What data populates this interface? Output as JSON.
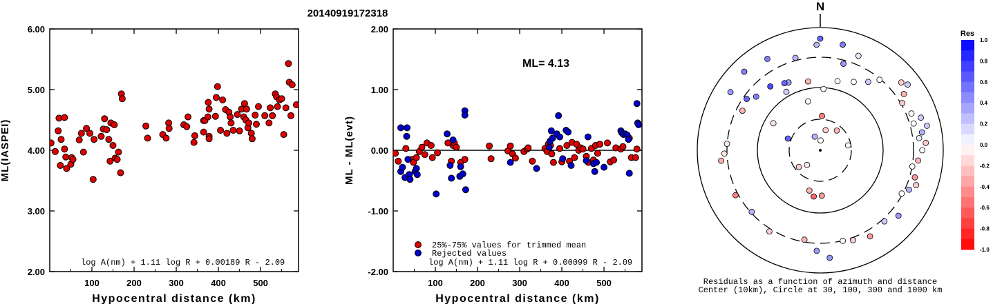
{
  "title": "20140919172318",
  "colors": {
    "accepted": "#dd0000",
    "rejected": "#0000cc",
    "marker_edge": "#000000"
  },
  "chart_data": [
    {
      "type": "scatter",
      "xlabel": "Hypocentral distance (km)",
      "ylabel": "ML(IASPEI)",
      "xlim": [
        0,
        590
      ],
      "ylim": [
        2.0,
        6.0
      ],
      "xticks": [
        "100",
        "200",
        "300",
        "400",
        "500"
      ],
      "xtick_values": [
        100,
        200,
        300,
        400,
        500
      ],
      "yticks": [
        "2.00",
        "3.00",
        "4.00",
        "5.00",
        "6.00"
      ],
      "ytick_values": [
        2,
        3,
        4,
        5,
        6
      ],
      "formula": "log A(nm) + 1.11 log R + 0.00189 R - 2.09",
      "grid": false,
      "points": [
        [
          3,
          4.12
        ],
        [
          13,
          3.98
        ],
        [
          20,
          4.32
        ],
        [
          22,
          4.53
        ],
        [
          25,
          3.75
        ],
        [
          27,
          4.18
        ],
        [
          35,
          4.54
        ],
        [
          35,
          4.02
        ],
        [
          38,
          3.89
        ],
        [
          40,
          3.7
        ],
        [
          50,
          3.77
        ],
        [
          52,
          3.88
        ],
        [
          55,
          3.85
        ],
        [
          70,
          4.17
        ],
        [
          75,
          4.28
        ],
        [
          80,
          3.97
        ],
        [
          87,
          4.36
        ],
        [
          95,
          4.28
        ],
        [
          103,
          3.52
        ],
        [
          105,
          4.18
        ],
        [
          122,
          4.23
        ],
        [
          127,
          4.35
        ],
        [
          130,
          4.52
        ],
        [
          135,
          4.34
        ],
        [
          140,
          4.18
        ],
        [
          143,
          3.82
        ],
        [
          145,
          4.45
        ],
        [
          150,
          4.08
        ],
        [
          153,
          4.42
        ],
        [
          155,
          3.87
        ],
        [
          160,
          3.85
        ],
        [
          163,
          3.97
        ],
        [
          168,
          3.63
        ],
        [
          170,
          4.93
        ],
        [
          172,
          4.85
        ],
        [
          228,
          4.4
        ],
        [
          232,
          4.2
        ],
        [
          268,
          4.26
        ],
        [
          276,
          4.2
        ],
        [
          282,
          4.45
        ],
        [
          283,
          4.36
        ],
        [
          318,
          4.42
        ],
        [
          325,
          4.39
        ],
        [
          328,
          4.55
        ],
        [
          342,
          4.13
        ],
        [
          344,
          4.24
        ],
        [
          365,
          4.49
        ],
        [
          365,
          4.3
        ],
        [
          368,
          4.49
        ],
        [
          375,
          4.55
        ],
        [
          376,
          4.79
        ],
        [
          378,
          4.68
        ],
        [
          378,
          4.23
        ],
        [
          378,
          4.19
        ],
        [
          393,
          4.56
        ],
        [
          395,
          4.87
        ],
        [
          398,
          5.05
        ],
        [
          405,
          4.33
        ],
        [
          410,
          4.83
        ],
        [
          417,
          4.67
        ],
        [
          420,
          4.28
        ],
        [
          425,
          4.63
        ],
        [
          428,
          4.55
        ],
        [
          430,
          4.45
        ],
        [
          435,
          4.33
        ],
        [
          445,
          4.59
        ],
        [
          450,
          4.32
        ],
        [
          455,
          4.68
        ],
        [
          460,
          4.55
        ],
        [
          462,
          4.77
        ],
        [
          465,
          4.5
        ],
        [
          467,
          4.68
        ],
        [
          470,
          4.37
        ],
        [
          472,
          4.45
        ],
        [
          478,
          4.28
        ],
        [
          480,
          4.19
        ],
        [
          487,
          4.58
        ],
        [
          490,
          4.43
        ],
        [
          495,
          4.72
        ],
        [
          510,
          4.57
        ],
        [
          520,
          4.45
        ],
        [
          523,
          4.7
        ],
        [
          528,
          4.57
        ],
        [
          535,
          4.93
        ],
        [
          538,
          4.88
        ],
        [
          540,
          4.72
        ],
        [
          545,
          4.83
        ],
        [
          550,
          4.85
        ],
        [
          555,
          4.26
        ],
        [
          560,
          4.7
        ],
        [
          566,
          5.43
        ],
        [
          568,
          5.12
        ],
        [
          572,
          4.57
        ],
        [
          575,
          5.08
        ],
        [
          585,
          4.75
        ]
      ]
    },
    {
      "type": "scatter",
      "xlabel": "Hypocentral distance (km)",
      "ylabel": "ML - ML(evt)",
      "xlim": [
        0,
        590
      ],
      "ylim": [
        -2.0,
        2.0
      ],
      "xticks": [
        "100",
        "200",
        "300",
        "400",
        "500"
      ],
      "xtick_values": [
        100,
        200,
        300,
        400,
        500
      ],
      "yticks": [
        "-2.00",
        "-1.00",
        "0.00",
        "1.00",
        "2.00"
      ],
      "ytick_values": [
        -2,
        -1,
        0,
        1,
        2
      ],
      "annotation": "ML= 4.13",
      "formula": "log A(nm) + 1.11 log R + 0.00099 R - 2.09",
      "legend": [
        "25%-75% values for trimmed mean",
        "Rejected values"
      ],
      "series": [
        {
          "name": "25%-75% values for trimmed mean",
          "color": "#dd0000",
          "points": [
            [
              5,
              -0.05
            ],
            [
              12,
              -0.18
            ],
            [
              30,
              0.03
            ],
            [
              45,
              -0.15
            ],
            [
              48,
              -0.2
            ],
            [
              55,
              -0.12
            ],
            [
              62,
              -0.02
            ],
            [
              68,
              0.05
            ],
            [
              75,
              -0.07
            ],
            [
              80,
              0.12
            ],
            [
              90,
              0.08
            ],
            [
              93,
              -0.12
            ],
            [
              105,
              -0.04
            ],
            [
              130,
              0.12
            ],
            [
              138,
              -0.18
            ],
            [
              142,
              0.08
            ],
            [
              145,
              0.12
            ],
            [
              150,
              0.05
            ],
            [
              160,
              -0.2
            ],
            [
              170,
              -0.15
            ],
            [
              228,
              0.07
            ],
            [
              232,
              -0.14
            ],
            [
              272,
              -0.01
            ],
            [
              278,
              0.07
            ],
            [
              283,
              -0.06
            ],
            [
              290,
              -0.13
            ],
            [
              310,
              -0.02
            ],
            [
              318,
              0.02
            ],
            [
              320,
              0.04
            ],
            [
              330,
              -0.18
            ],
            [
              360,
              0.03
            ],
            [
              365,
              -0.02
            ],
            [
              368,
              0.1
            ],
            [
              373,
              0.08
            ],
            [
              376,
              -0.06
            ],
            [
              380,
              -0.2
            ],
            [
              395,
              0.03
            ],
            [
              400,
              -0.19
            ],
            [
              412,
              0.08
            ],
            [
              418,
              -0.18
            ],
            [
              424,
              0.13
            ],
            [
              430,
              -0.12
            ],
            [
              435,
              0.1
            ],
            [
              440,
              0.0
            ],
            [
              445,
              0.04
            ],
            [
              450,
              0.02
            ],
            [
              458,
              -0.1
            ],
            [
              463,
              -0.2
            ],
            [
              470,
              0.03
            ],
            [
              475,
              -0.16
            ],
            [
              480,
              0.08
            ],
            [
              485,
              -0.05
            ],
            [
              490,
              0.1
            ],
            [
              508,
              0.12
            ],
            [
              515,
              -0.19
            ],
            [
              523,
              -0.16
            ],
            [
              528,
              0.04
            ],
            [
              540,
              0.02
            ],
            [
              545,
              0.06
            ],
            [
              560,
              0.2
            ],
            [
              565,
              -0.12
            ],
            [
              575,
              -0.12
            ],
            [
              578,
              0.02
            ]
          ]
        },
        {
          "name": "Rejected values",
          "color": "#0000cc",
          "points": [
            [
              18,
              0.37
            ],
            [
              18,
              -0.35
            ],
            [
              22,
              -0.28
            ],
            [
              28,
              -0.45
            ],
            [
              32,
              0.23
            ],
            [
              33,
              0.37
            ],
            [
              35,
              -0.15
            ],
            [
              38,
              -0.4
            ],
            [
              40,
              -0.48
            ],
            [
              52,
              -0.35
            ],
            [
              55,
              -0.3
            ],
            [
              57,
              -0.4
            ],
            [
              102,
              -0.72
            ],
            [
              128,
              0.27
            ],
            [
              135,
              -0.25
            ],
            [
              138,
              -0.46
            ],
            [
              142,
              0.17
            ],
            [
              158,
              -0.43
            ],
            [
              160,
              -0.27
            ],
            [
              165,
              -0.39
            ],
            [
              170,
              0.65
            ],
            [
              170,
              0.58
            ],
            [
              172,
              -0.65
            ],
            [
              278,
              -0.2
            ],
            [
              340,
              -0.3
            ],
            [
              370,
              0.05
            ],
            [
              372,
              0.15
            ],
            [
              375,
              0.32
            ],
            [
              378,
              0.2
            ],
            [
              388,
              0.27
            ],
            [
              392,
              0.57
            ],
            [
              395,
              0.22
            ],
            [
              402,
              -0.14
            ],
            [
              410,
              0.33
            ],
            [
              415,
              0.3
            ],
            [
              422,
              -0.25
            ],
            [
              458,
              -0.17
            ],
            [
              462,
              0.22
            ],
            [
              475,
              -0.22
            ],
            [
              478,
              -0.35
            ],
            [
              482,
              -0.2
            ],
            [
              500,
              -0.28
            ],
            [
              540,
              0.32
            ],
            [
              542,
              0.29
            ],
            [
              546,
              0.26
            ],
            [
              550,
              0.27
            ],
            [
              555,
              0.25
            ],
            [
              558,
              0.18
            ],
            [
              560,
              -0.38
            ],
            [
              578,
              0.77
            ],
            [
              580,
              0.45
            ],
            [
              582,
              0.42
            ]
          ]
        }
      ]
    },
    {
      "type": "polar_scatter",
      "north_label": "N",
      "caption": [
        "Residuals as a function of azimuth and distance",
        "Center (10km), Circle at 30, 100, 300 and 1000 km"
      ],
      "colorbar_title": "Res",
      "colorbar_ticks": [
        "1.0",
        "0.8",
        "0.6",
        "0.4",
        "0.2",
        "0.0",
        "-0.2",
        "-0.4",
        "-0.6",
        "-0.8",
        "-1.0"
      ],
      "colorbar_values": [
        1.0,
        0.8,
        0.6,
        0.4,
        0.2,
        0.0,
        -0.2,
        -0.4,
        -0.6,
        -0.8,
        -1.0
      ],
      "points": [
        [
          2,
          0.08,
          0.0
        ],
        [
          15,
          0.17,
          -0.2
        ],
        [
          338,
          0.12,
          0.3
        ],
        [
          40,
          0.21,
          -0.3
        ],
        [
          80,
          0.23,
          0.0
        ],
        [
          222,
          0.16,
          -0.1
        ],
        [
          232,
          0.22,
          -0.2
        ],
        [
          290,
          0.28,
          0.6
        ],
        [
          3,
          0.28,
          -0.5
        ],
        [
          195,
          0.34,
          -0.3
        ],
        [
          188,
          0.38,
          -0.6
        ],
        [
          178,
          0.37,
          -0.4
        ],
        [
          3,
          0.5,
          0.0
        ],
        [
          346,
          0.41,
          0.0
        ],
        [
          300,
          0.44,
          -0.1
        ],
        [
          350,
          0.57,
          -0.3
        ],
        [
          14,
          0.58,
          0.0
        ],
        [
          330,
          0.55,
          0.2
        ],
        [
          335,
          0.61,
          0.4
        ],
        [
          332,
          0.62,
          0.6
        ],
        [
          322,
          0.66,
          0.7
        ],
        [
          310,
          0.68,
          0.5
        ],
        [
          305,
          0.73,
          0.6
        ],
        [
          297,
          0.71,
          -0.3
        ],
        [
          274,
          0.76,
          -0.1
        ],
        [
          268,
          0.78,
          -0.1
        ],
        [
          264,
          0.81,
          -0.3
        ],
        [
          242,
          0.78,
          -0.5
        ],
        [
          228,
          0.75,
          0.3
        ],
        [
          212,
          0.78,
          -0.2
        ],
        [
          190,
          0.74,
          -0.3
        ],
        [
          182,
          0.82,
          0.4
        ],
        [
          175,
          0.88,
          0.4
        ],
        [
          166,
          0.76,
          0.0
        ],
        [
          160,
          0.78,
          -0.2
        ],
        [
          150,
          0.81,
          -0.4
        ],
        [
          138,
          0.78,
          0.2
        ],
        [
          130,
          0.83,
          0.4
        ],
        [
          118,
          0.75,
          0.0
        ],
        [
          114,
          0.79,
          0.3
        ],
        [
          110,
          0.83,
          -0.2
        ],
        [
          106,
          0.8,
          -0.4
        ],
        [
          100,
          0.76,
          0.0
        ],
        [
          96,
          0.8,
          -0.3
        ],
        [
          90,
          0.83,
          0.0
        ],
        [
          86,
          0.86,
          -0.2
        ],
        [
          83,
          0.81,
          0.1
        ],
        [
          80,
          0.84,
          0.3
        ],
        [
          77,
          0.89,
          0.2
        ],
        [
          74,
          0.79,
          0.0
        ],
        [
          72,
          0.86,
          0.2
        ],
        [
          68,
          0.8,
          0.0
        ],
        [
          60,
          0.77,
          -0.2
        ],
        [
          56,
          0.82,
          -0.3
        ],
        [
          53,
          0.89,
          0.2
        ],
        [
          50,
          0.86,
          -0.2
        ],
        [
          40,
          0.75,
          0.0
        ],
        [
          35,
          0.68,
          0.2
        ],
        [
          26,
          0.62,
          0.0
        ],
        [
          22,
          0.83,
          0.1
        ],
        [
          15,
          0.73,
          0.4
        ],
        [
          12,
          0.88,
          0.5
        ],
        [
          0,
          0.91,
          0.6
        ],
        [
          358,
          0.86,
          0.3
        ],
        [
          345,
          0.78,
          0.3
        ],
        [
          330,
          0.86,
          0.5
        ],
        [
          316,
          0.89,
          0.5
        ],
        [
          303,
          0.87,
          0.4
        ]
      ]
    }
  ]
}
